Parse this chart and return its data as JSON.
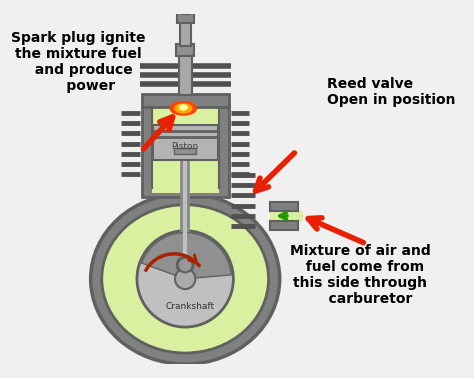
{
  "bg_color": "#f0f0f0",
  "engine_gray": "#808080",
  "engine_gray_light": "#a8a8a8",
  "engine_gray_dark": "#606060",
  "green_fill": "#d8f0a0",
  "piston_gray": "#a0a0a0",
  "spark_orange": "#ff5500",
  "spark_yellow": "#ffcc00",
  "spark_white": "#ffffff",
  "arrow_red": "#e82000",
  "arrow_dark_red": "#aa2200",
  "arrow_green": "#229900",
  "text_color": "#000000",
  "fin_color": "#505050",
  "label_spark": "Spark plug ignite\nthe mixture fuel\n  and produce\n     power",
  "label_reed": "Reed valve\nOpen in position",
  "label_mixture": "Mixture of air and\n  fuel come from\nthis side through\n    carburetor",
  "label_piston": "Piston",
  "label_crankshaft": "Crankshaft"
}
